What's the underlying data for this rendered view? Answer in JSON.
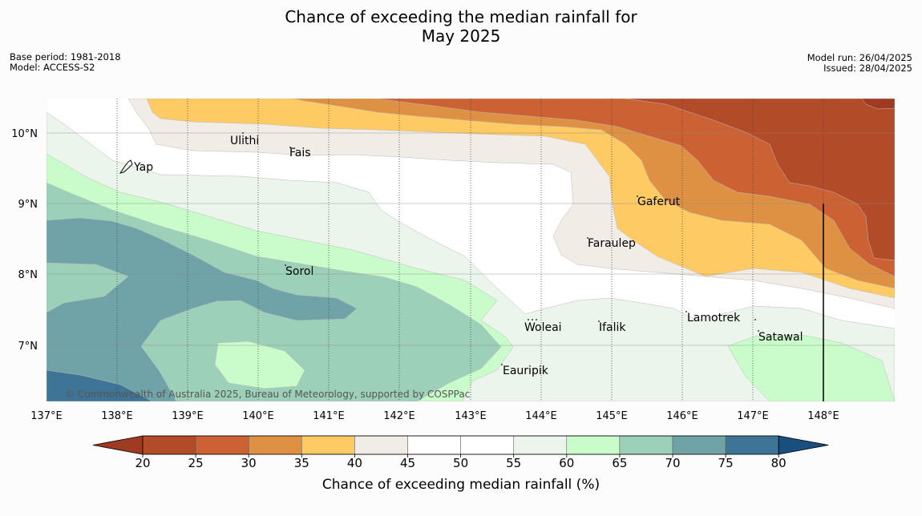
{
  "title_line1": "Chance of exceeding the median rainfall for",
  "title_line2": "May 2025",
  "base_period": "Base period: 1981-2018",
  "model": "Model: ACCESS-S2",
  "model_run": "Model run: 26/04/2025",
  "issued": "Issued: 28/04/2025",
  "copyright": "© Commonwealth of Australia 2025, Bureau of Meteorology, supported by COSPPac",
  "places": [
    {
      "name": "Ulithi",
      "lon": 139.8,
      "lat": 9.9
    },
    {
      "name": "Fais",
      "lon": 140.5,
      "lat": 9.75
    },
    {
      "name": "Yap",
      "lon": 138.1,
      "lat": 9.5
    },
    {
      "name": "Gaferut",
      "lon": 145.4,
      "lat": 9.05
    },
    {
      "name": "Faraulep",
      "lon": 144.6,
      "lat": 8.45
    },
    {
      "name": "Sorol",
      "lon": 140.4,
      "lat": 8.05
    },
    {
      "name": "Lamotrek",
      "lon": 146.1,
      "lat": 7.38
    },
    {
      "name": "Woleai",
      "lon": 143.8,
      "lat": 7.27
    },
    {
      "name": "Ifalik",
      "lon": 144.8,
      "lat": 7.27
    },
    {
      "name": "Satawal",
      "lon": 147.1,
      "lat": 7.13
    },
    {
      "name": "Eauripik",
      "lon": 143.4,
      "lat": 6.65
    }
  ],
  "lon_ticks": [
    "137°E",
    "138°E",
    "139°E",
    "140°E",
    "141°E",
    "142°E",
    "143°E",
    "144°E",
    "145°E",
    "146°E",
    "147°E",
    "148°E"
  ],
  "lat_ticks": [
    "10°N",
    "9°N",
    "8°N",
    "7°N"
  ],
  "colorbar": {
    "title": "Chance of exceeding median rainfall (%)",
    "ticks": [
      "20",
      "25",
      "30",
      "35",
      "40",
      "45",
      "50",
      "55",
      "60",
      "65",
      "70",
      "75",
      "80"
    ],
    "bins": [
      {
        "range": "<20",
        "color": "#9e3b22"
      },
      {
        "range": "20-25",
        "color": "#b24b28"
      },
      {
        "range": "25-30",
        "color": "#cc6133"
      },
      {
        "range": "30-35",
        "color": "#df9143"
      },
      {
        "range": "35-40",
        "color": "#fdca63"
      },
      {
        "range": "40-45",
        "color": "#f1ece6"
      },
      {
        "range": "45-50",
        "color": "#ffffff"
      },
      {
        "range": "50-55",
        "color": "#ffffff"
      },
      {
        "range": "55-60",
        "color": "#ebf5eb"
      },
      {
        "range": "60-65",
        "color": "#c9fcca"
      },
      {
        "range": "65-70",
        "color": "#9dd0b8"
      },
      {
        "range": "70-75",
        "color": "#6fa3a7"
      },
      {
        "range": "75-80",
        "color": "#3e7597"
      },
      {
        "range": ">80",
        "color": "#194f7f"
      }
    ]
  }
}
